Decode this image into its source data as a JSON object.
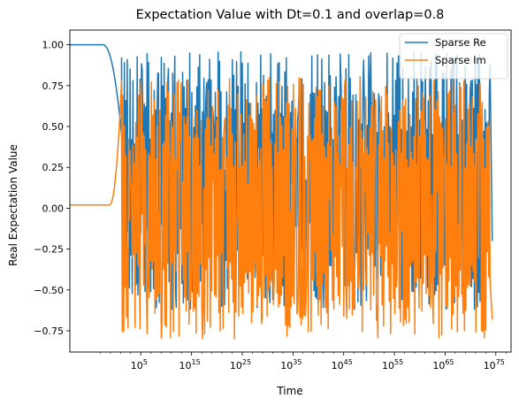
{
  "chart_data": {
    "type": "line",
    "title": "Expectation Value with Dt=0.1 and overlap=0.8",
    "xlabel": "Time",
    "ylabel": "Real Expectation Value",
    "xscale": "log",
    "xlim_log10": [
      -9,
      78
    ],
    "ylim": [
      -0.88,
      1.09
    ],
    "xticks": [
      {
        "base": "10",
        "exp": "5",
        "log10": 5
      },
      {
        "base": "10",
        "exp": "15",
        "log10": 15
      },
      {
        "base": "10",
        "exp": "25",
        "log10": 25
      },
      {
        "base": "10",
        "exp": "35",
        "log10": 35
      },
      {
        "base": "10",
        "exp": "45",
        "log10": 45
      },
      {
        "base": "10",
        "exp": "55",
        "log10": 55
      },
      {
        "base": "10",
        "exp": "65",
        "log10": 65
      },
      {
        "base": "10",
        "exp": "75",
        "log10": 75
      }
    ],
    "yticks": [
      {
        "label": "1.00",
        "value": 1.0
      },
      {
        "label": "0.75",
        "value": 0.75
      },
      {
        "label": "0.50",
        "value": 0.5
      },
      {
        "label": "0.25",
        "value": 0.25
      },
      {
        "label": "0.00",
        "value": 0.0
      },
      {
        "label": "−0.25",
        "value": -0.25
      },
      {
        "label": "−0.50",
        "value": -0.5
      },
      {
        "label": "−0.75",
        "value": -0.75
      }
    ],
    "legend_position": "top-right",
    "grid": false,
    "series": [
      {
        "name": "Sparse Re",
        "color": "#1f77b4",
        "plateau": {
          "log10_t_end": -2.5,
          "value": 1.0
        },
        "transition_log10_t": [
          -2.5,
          1.2
        ],
        "oscillation_log10_t": [
          1.2,
          74.0
        ],
        "oscillation_range": [
          -0.62,
          0.96
        ],
        "end_drop_value": -0.2
      },
      {
        "name": "Sparse Im",
        "color": "#ff7f0e",
        "plateau": {
          "log10_t_end": -1.2,
          "value": 0.02
        },
        "transition_log10_t": [
          -1.2,
          1.2
        ],
        "oscillation_log10_t": [
          1.2,
          74.0
        ],
        "oscillation_range": [
          -0.81,
          0.8
        ],
        "end_drop_value": -0.68
      }
    ]
  }
}
